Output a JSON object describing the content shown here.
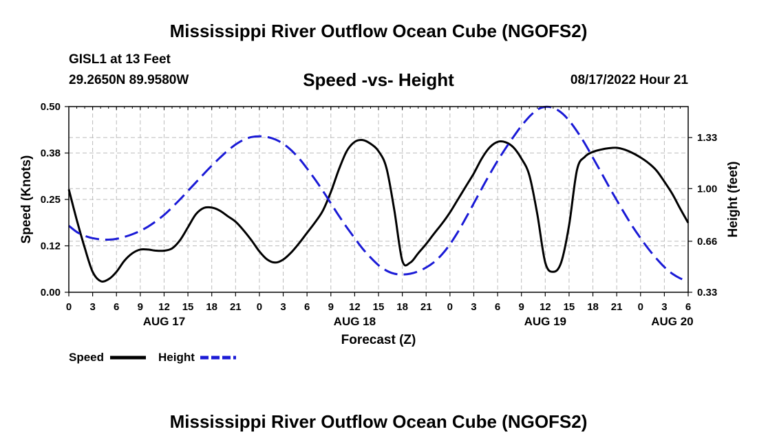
{
  "header": {
    "title": "Mississippi River Outflow Ocean Cube (NGOFS2)",
    "station": "GISL1 at 13 Feet",
    "coords": "29.2650N  89.9580W",
    "subtitle": "Speed -vs- Height",
    "datetime": "08/17/2022 Hour 21"
  },
  "footer": {
    "repeat_title": "Mississippi River Outflow Ocean Cube (NGOFS2)"
  },
  "colors": {
    "speed": "#000000",
    "height": "#1a1ad6",
    "grid": "#bbbbbb"
  },
  "chart_data": {
    "type": "line",
    "title": "Speed -vs- Height",
    "xlabel": "Forecast (Z)",
    "ylabel": "Speed (Knots)",
    "y2label": "Height (feet)",
    "x_unit": "hours since 2022-08-17 00Z",
    "xlim": [
      0,
      78
    ],
    "ylim": [
      0,
      0.5
    ],
    "y2lim": [
      0.33,
      1.53
    ],
    "grid": true,
    "legend": "bottom-left",
    "x_ticks": [
      {
        "x": 0,
        "label": "0"
      },
      {
        "x": 3,
        "label": "3"
      },
      {
        "x": 6,
        "label": "6"
      },
      {
        "x": 9,
        "label": "9"
      },
      {
        "x": 12,
        "label": "12"
      },
      {
        "x": 15,
        "label": "15"
      },
      {
        "x": 18,
        "label": "18"
      },
      {
        "x": 21,
        "label": "21"
      },
      {
        "x": 24,
        "label": "0"
      },
      {
        "x": 27,
        "label": "3"
      },
      {
        "x": 30,
        "label": "6"
      },
      {
        "x": 33,
        "label": "9"
      },
      {
        "x": 36,
        "label": "12"
      },
      {
        "x": 39,
        "label": "15"
      },
      {
        "x": 42,
        "label": "18"
      },
      {
        "x": 45,
        "label": "21"
      },
      {
        "x": 48,
        "label": "0"
      },
      {
        "x": 51,
        "label": "3"
      },
      {
        "x": 54,
        "label": "6"
      },
      {
        "x": 57,
        "label": "9"
      },
      {
        "x": 60,
        "label": "12"
      },
      {
        "x": 63,
        "label": "15"
      },
      {
        "x": 66,
        "label": "18"
      },
      {
        "x": 69,
        "label": "21"
      },
      {
        "x": 72,
        "label": "0"
      },
      {
        "x": 75,
        "label": "3"
      },
      {
        "x": 78,
        "label": "6"
      }
    ],
    "date_labels": [
      {
        "x": 12,
        "label": "AUG 17"
      },
      {
        "x": 36,
        "label": "AUG 18"
      },
      {
        "x": 60,
        "label": "AUG 19"
      },
      {
        "x": 76,
        "label": "AUG 20"
      }
    ],
    "y_ticks": [
      {
        "value": 0.0,
        "label": "0.00"
      },
      {
        "value": 0.125,
        "label": "0.12"
      },
      {
        "value": 0.25,
        "label": "0.25"
      },
      {
        "value": 0.375,
        "label": "0.38"
      },
      {
        "value": 0.5,
        "label": "0.50"
      }
    ],
    "y2_ticks": [
      {
        "value": 0.33,
        "label": "0.33"
      },
      {
        "value": 0.66,
        "label": "0.66"
      },
      {
        "value": 1.0,
        "label": "1.00"
      },
      {
        "value": 1.33,
        "label": "1.33"
      }
    ],
    "series": [
      {
        "name": "Speed",
        "axis": "left",
        "style": "solid",
        "points": [
          [
            0,
            0.277
          ],
          [
            1,
            0.195
          ],
          [
            2,
            0.12
          ],
          [
            3,
            0.055
          ],
          [
            4,
            0.03
          ],
          [
            5,
            0.035
          ],
          [
            6,
            0.055
          ],
          [
            7,
            0.085
          ],
          [
            8,
            0.105
          ],
          [
            9,
            0.115
          ],
          [
            10,
            0.115
          ],
          [
            11,
            0.112
          ],
          [
            12,
            0.112
          ],
          [
            13,
            0.118
          ],
          [
            14,
            0.14
          ],
          [
            15,
            0.175
          ],
          [
            16,
            0.21
          ],
          [
            17,
            0.227
          ],
          [
            18,
            0.228
          ],
          [
            19,
            0.22
          ],
          [
            20,
            0.205
          ],
          [
            21,
            0.19
          ],
          [
            22,
            0.167
          ],
          [
            23,
            0.14
          ],
          [
            24,
            0.11
          ],
          [
            25,
            0.088
          ],
          [
            26,
            0.08
          ],
          [
            27,
            0.088
          ],
          [
            28,
            0.107
          ],
          [
            29,
            0.132
          ],
          [
            30,
            0.16
          ],
          [
            31,
            0.188
          ],
          [
            32,
            0.22
          ],
          [
            33,
            0.27
          ],
          [
            34,
            0.33
          ],
          [
            35,
            0.38
          ],
          [
            36,
            0.405
          ],
          [
            37,
            0.41
          ],
          [
            38,
            0.4
          ],
          [
            39,
            0.38
          ],
          [
            40,
            0.335
          ],
          [
            41,
            0.22
          ],
          [
            42,
            0.085
          ],
          [
            43,
            0.08
          ],
          [
            44,
            0.105
          ],
          [
            45,
            0.13
          ],
          [
            46,
            0.158
          ],
          [
            47,
            0.185
          ],
          [
            48,
            0.215
          ],
          [
            49,
            0.25
          ],
          [
            50,
            0.285
          ],
          [
            51,
            0.32
          ],
          [
            52,
            0.36
          ],
          [
            53,
            0.39
          ],
          [
            54,
            0.405
          ],
          [
            55,
            0.404
          ],
          [
            56,
            0.39
          ],
          [
            57,
            0.36
          ],
          [
            58,
            0.315
          ],
          [
            59,
            0.21
          ],
          [
            60,
            0.08
          ],
          [
            61,
            0.055
          ],
          [
            62,
            0.08
          ],
          [
            63,
            0.18
          ],
          [
            64,
            0.33
          ],
          [
            65,
            0.365
          ],
          [
            66,
            0.378
          ],
          [
            67,
            0.384
          ],
          [
            68,
            0.388
          ],
          [
            69,
            0.389
          ],
          [
            70,
            0.384
          ],
          [
            71,
            0.375
          ],
          [
            72,
            0.363
          ],
          [
            73,
            0.348
          ],
          [
            74,
            0.328
          ],
          [
            75,
            0.298
          ],
          [
            76,
            0.265
          ],
          [
            77,
            0.225
          ],
          [
            78,
            0.187
          ]
        ]
      },
      {
        "name": "Height",
        "axis": "right",
        "style": "dashed",
        "points": [
          [
            0,
            0.76
          ],
          [
            1,
            0.72
          ],
          [
            2,
            0.695
          ],
          [
            3,
            0.68
          ],
          [
            4,
            0.672
          ],
          [
            5,
            0.67
          ],
          [
            6,
            0.675
          ],
          [
            7,
            0.688
          ],
          [
            8,
            0.705
          ],
          [
            9,
            0.727
          ],
          [
            10,
            0.755
          ],
          [
            11,
            0.79
          ],
          [
            12,
            0.83
          ],
          [
            13,
            0.878
          ],
          [
            14,
            0.93
          ],
          [
            15,
            0.985
          ],
          [
            16,
            1.04
          ],
          [
            17,
            1.095
          ],
          [
            18,
            1.148
          ],
          [
            19,
            1.198
          ],
          [
            20,
            1.245
          ],
          [
            21,
            1.285
          ],
          [
            22,
            1.315
          ],
          [
            23,
            1.333
          ],
          [
            24,
            1.338
          ],
          [
            25,
            1.333
          ],
          [
            26,
            1.318
          ],
          [
            27,
            1.29
          ],
          [
            28,
            1.248
          ],
          [
            29,
            1.195
          ],
          [
            30,
            1.13
          ],
          [
            31,
            1.06
          ],
          [
            32,
            0.985
          ],
          [
            33,
            0.905
          ],
          [
            34,
            0.825
          ],
          [
            35,
            0.75
          ],
          [
            36,
            0.68
          ],
          [
            37,
            0.612
          ],
          [
            38,
            0.555
          ],
          [
            39,
            0.505
          ],
          [
            40,
            0.47
          ],
          [
            41,
            0.45
          ],
          [
            42,
            0.445
          ],
          [
            43,
            0.45
          ],
          [
            44,
            0.465
          ],
          [
            45,
            0.49
          ],
          [
            46,
            0.525
          ],
          [
            47,
            0.575
          ],
          [
            48,
            0.64
          ],
          [
            49,
            0.72
          ],
          [
            50,
            0.81
          ],
          [
            51,
            0.905
          ],
          [
            52,
            1.0
          ],
          [
            53,
            1.092
          ],
          [
            54,
            1.18
          ],
          [
            55,
            1.26
          ],
          [
            56,
            1.335
          ],
          [
            57,
            1.405
          ],
          [
            58,
            1.465
          ],
          [
            59,
            1.51
          ],
          [
            60,
            1.528
          ],
          [
            61,
            1.522
          ],
          [
            62,
            1.492
          ],
          [
            63,
            1.44
          ],
          [
            64,
            1.37
          ],
          [
            65,
            1.29
          ],
          [
            66,
            1.2
          ],
          [
            67,
            1.108
          ],
          [
            68,
            1.015
          ],
          [
            69,
            0.925
          ],
          [
            70,
            0.838
          ],
          [
            71,
            0.755
          ],
          [
            72,
            0.68
          ],
          [
            73,
            0.61
          ],
          [
            74,
            0.548
          ],
          [
            75,
            0.493
          ],
          [
            76,
            0.45
          ],
          [
            77,
            0.42
          ],
          [
            78,
            0.4
          ]
        ]
      }
    ]
  }
}
